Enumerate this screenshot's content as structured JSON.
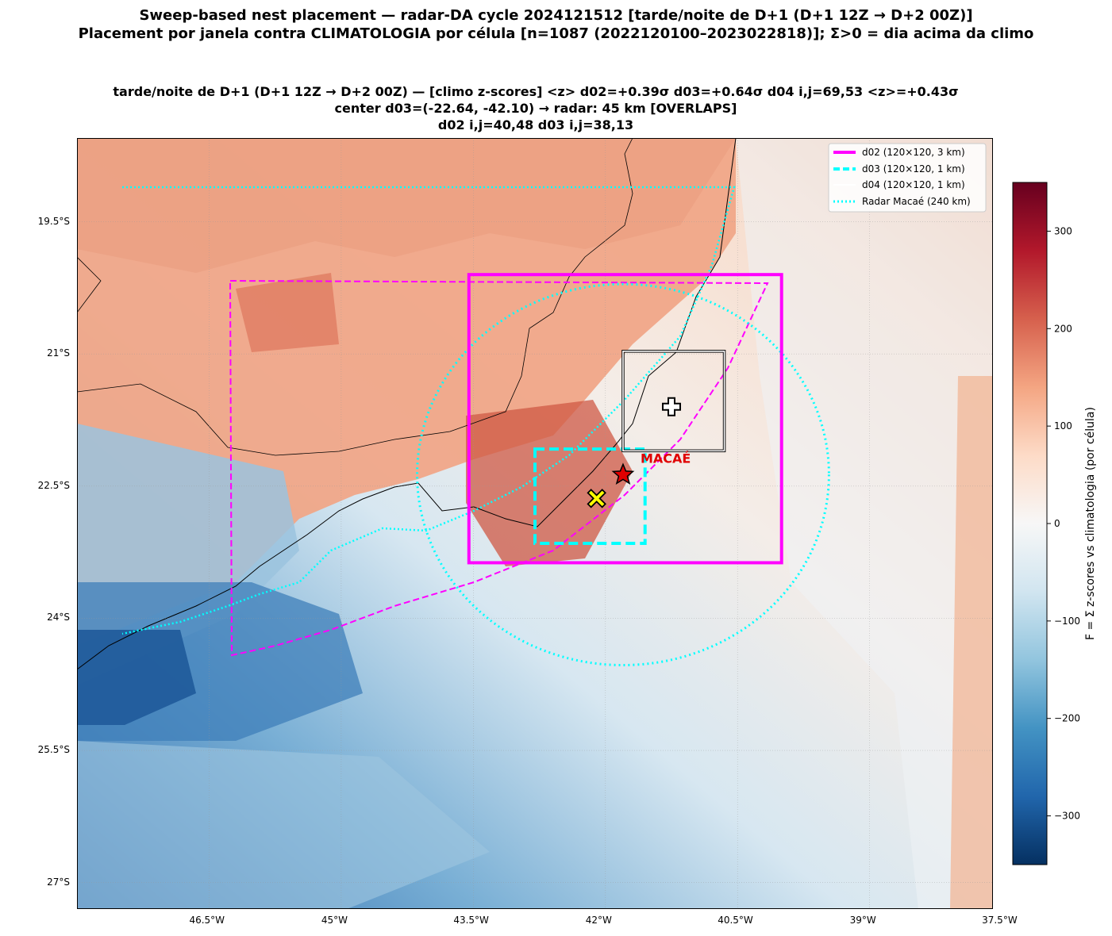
{
  "titles": {
    "line1": "Sweep-based nest placement — radar-DA cycle 2024121512  [tarde/noite de D+1 (D+1 12Z → D+2 00Z)]",
    "line2": "Placement por janela contra CLIMATOLOGIA por célula [n=1087  (2022120100–2023022818)]; Σ>0 = dia acima da climo",
    "ax1": "tarde/noite de D+1 (D+1 12Z → D+2 00Z)   —   [climo z-scores]   <z> d02=+0.39σ   d03=+0.64σ   d04 i,j=69,53  <z>=+0.43σ",
    "ax2": "center d03=(-22.64, -42.10)   → radar: 45 km  [OVERLAPS]",
    "ax3": "d02 i,j=40,48   d03 i,j=38,13"
  },
  "map": {
    "lon_range": [
      -48.0,
      -37.6
    ],
    "lat_range": [
      -27.3,
      -18.55
    ],
    "x_ticks": [
      "46.5°W",
      "45°W",
      "43.5°W",
      "42°W",
      "40.5°W",
      "39°W",
      "37.5°W"
    ],
    "x_tick_values": [
      -46.5,
      -45.0,
      -43.5,
      -42.0,
      -40.5,
      -39.0,
      -37.5
    ],
    "y_ticks": [
      "19.5°S",
      "21°S",
      "22.5°S",
      "24°S",
      "25.5°S",
      "27°S"
    ],
    "y_tick_values": [
      -19.5,
      -21.0,
      -22.5,
      -24.0,
      -25.5,
      -27.0
    ],
    "radar_label": "MACAÉ",
    "radar_center": [
      -41.8,
      -22.37
    ],
    "radar_range_km": 240,
    "nest_center": [
      -42.1,
      -22.64
    ],
    "d04_center": [
      -41.25,
      -21.6
    ],
    "d02_box": {
      "lon": [
        -43.55,
        -40.0
      ],
      "lat": [
        -23.37,
        -20.1
      ]
    },
    "d03_box": {
      "lon": [
        -42.8,
        -41.55
      ],
      "lat": [
        -23.15,
        -22.08
      ]
    },
    "d04_box": {
      "lon": [
        -41.8,
        -40.65
      ],
      "lat": [
        -22.1,
        -20.97
      ]
    },
    "colors": {
      "d02": "#ff00ff",
      "d03": "#00ffff",
      "radar": "#00ffff",
      "star": "#e00000",
      "marker": "#ffff00"
    }
  },
  "legend": {
    "items": [
      {
        "label": "d02 (120×120, 3 km)",
        "style": "solid",
        "color": "#ff00ff"
      },
      {
        "label": "d03 (120×120, 1 km)",
        "style": "dashed",
        "color": "#00ffff"
      },
      {
        "label": "d04 (120×120, 1 km)",
        "style": "solid",
        "color": "#ffffff"
      },
      {
        "label": "Radar Macaé (240 km)",
        "style": "dotted",
        "color": "#00ffff"
      }
    ]
  },
  "colorbar": {
    "label": "F = Σ z-scores vs climatologia (por célula)",
    "range": [
      -350,
      350
    ],
    "ticks": [
      "300",
      "200",
      "100",
      "0",
      "−100",
      "−200",
      "−300"
    ],
    "tick_values": [
      300,
      200,
      100,
      0,
      -100,
      -200,
      -300
    ],
    "colormap": "RdBu_r"
  }
}
